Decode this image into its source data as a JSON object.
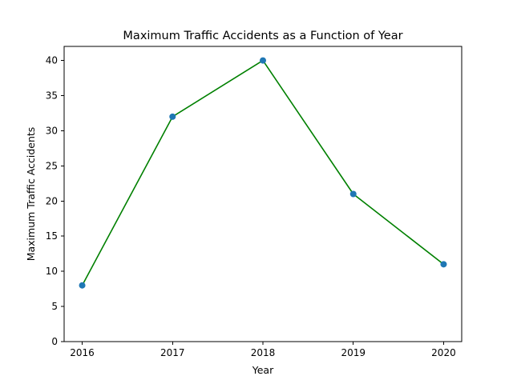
{
  "colors": {
    "line": "#008000",
    "marker": "#1f77b4",
    "background": "#ffffff",
    "axis": "#000000"
  },
  "chart_data": {
    "type": "line",
    "title": "Maximum Traffic Accidents as a Function of Year",
    "xlabel": "Year",
    "ylabel": "Maximum Traffic Accidents",
    "x": [
      2016,
      2017,
      2018,
      2019,
      2020
    ],
    "series": [
      {
        "values": [
          8,
          32,
          40,
          21,
          11
        ]
      }
    ],
    "xlim": [
      2015.8,
      2020.2
    ],
    "ylim": [
      0,
      42
    ],
    "xticks": [
      "2016",
      "2017",
      "2018",
      "2019",
      "2020"
    ],
    "yticks": [
      "0",
      "5",
      "10",
      "15",
      "20",
      "25",
      "30",
      "35",
      "40"
    ],
    "grid": false,
    "legend": "none",
    "markers": true
  }
}
